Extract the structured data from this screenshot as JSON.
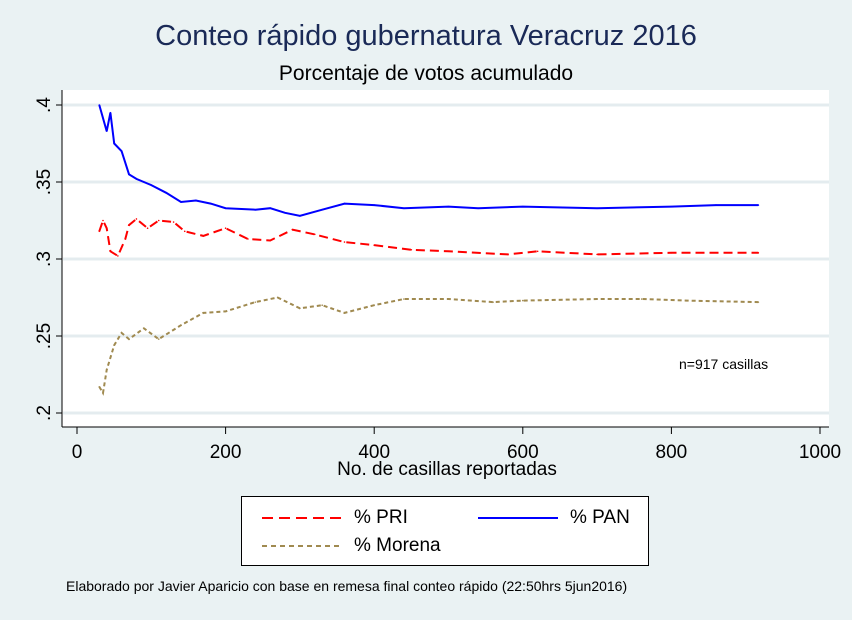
{
  "chart_data": {
    "type": "line",
    "title": "Conteo rápido gubernatura Veracruz 2016",
    "subtitle": "Porcentaje de votos acumulado",
    "xlabel": "No. de casillas reportadas",
    "ylabel": "",
    "xlim": [
      0,
      1000
    ],
    "ylim": [
      0.2,
      0.4
    ],
    "x_ticks": [
      0,
      200,
      400,
      600,
      800,
      1000
    ],
    "x_tick_labels": [
      "0",
      "200",
      "400",
      "600",
      "800",
      "1000"
    ],
    "y_ticks": [
      0.2,
      0.25,
      0.3,
      0.35,
      0.4
    ],
    "y_tick_labels": [
      ".2",
      ".25",
      ".3",
      ".35",
      ".4"
    ],
    "grid": true,
    "annotation": "n=917 casillas",
    "legend_position": "bottom",
    "series": [
      {
        "name": "% PRI",
        "color": "#ff0000",
        "style": "dashed",
        "x": [
          30,
          35,
          40,
          45,
          55,
          65,
          70,
          80,
          95,
          110,
          130,
          145,
          170,
          200,
          230,
          260,
          290,
          320,
          360,
          400,
          450,
          500,
          580,
          620,
          700,
          800,
          917
        ],
        "y": [
          0.318,
          0.325,
          0.32,
          0.305,
          0.302,
          0.313,
          0.322,
          0.326,
          0.32,
          0.325,
          0.324,
          0.318,
          0.315,
          0.32,
          0.313,
          0.312,
          0.319,
          0.316,
          0.311,
          0.309,
          0.306,
          0.305,
          0.303,
          0.305,
          0.303,
          0.304,
          0.304
        ]
      },
      {
        "name": "% PAN",
        "color": "#0000ff",
        "style": "solid",
        "x": [
          30,
          40,
          45,
          50,
          60,
          70,
          80,
          100,
          120,
          140,
          160,
          180,
          200,
          240,
          260,
          280,
          300,
          330,
          360,
          400,
          440,
          500,
          540,
          600,
          700,
          800,
          860,
          917
        ],
        "y": [
          0.4,
          0.383,
          0.395,
          0.375,
          0.37,
          0.355,
          0.352,
          0.348,
          0.343,
          0.337,
          0.338,
          0.336,
          0.333,
          0.332,
          0.333,
          0.33,
          0.328,
          0.332,
          0.336,
          0.335,
          0.333,
          0.334,
          0.333,
          0.334,
          0.333,
          0.334,
          0.335,
          0.335
        ]
      },
      {
        "name": "% Morena",
        "color": "#a08a50",
        "style": "dotted",
        "x": [
          30,
          35,
          40,
          50,
          60,
          70,
          90,
          110,
          140,
          170,
          200,
          240,
          270,
          300,
          330,
          360,
          400,
          440,
          500,
          560,
          600,
          700,
          760,
          820,
          917
        ],
        "y": [
          0.217,
          0.213,
          0.228,
          0.244,
          0.252,
          0.248,
          0.255,
          0.248,
          0.257,
          0.265,
          0.266,
          0.272,
          0.275,
          0.268,
          0.27,
          0.265,
          0.27,
          0.274,
          0.274,
          0.272,
          0.273,
          0.274,
          0.274,
          0.273,
          0.272
        ]
      }
    ]
  },
  "footnote": "Elaborado por Javier Aparicio con base en remesa final conteo rápido (22:50hrs 5jun2016)"
}
